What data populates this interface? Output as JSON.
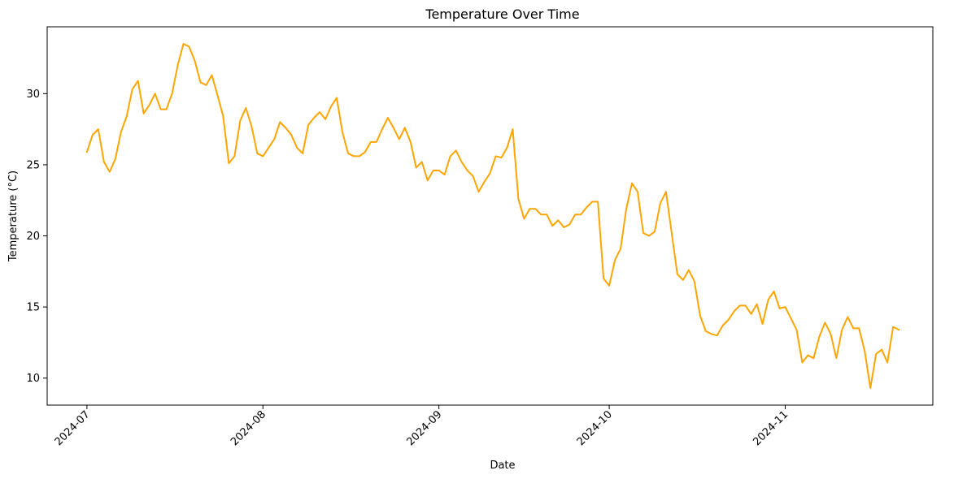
{
  "chart_data": {
    "type": "line",
    "title": "Temperature Over Time",
    "xlabel": "Date",
    "ylabel": "Temperature (°C)",
    "x_start": "2024-07-01",
    "x_end": "2024-11-20",
    "xlim": [
      "2024-06-24",
      "2024-11-27"
    ],
    "ylim": [
      8.1,
      34.7
    ],
    "x_ticks": [
      "2024-07-01",
      "2024-08-01",
      "2024-09-01",
      "2024-10-01",
      "2024-11-01"
    ],
    "x_tick_labels": [
      "2024-07",
      "2024-08",
      "2024-09",
      "2024-10",
      "2024-11"
    ],
    "y_ticks": [
      10,
      15,
      20,
      25,
      30
    ],
    "y_tick_labels": [
      "10",
      "15",
      "20",
      "25",
      "30"
    ],
    "grid": false,
    "legend": "none",
    "series": [
      {
        "color": "#ffa500",
        "values": [
          25.9,
          27.1,
          27.5,
          25.2,
          24.5,
          25.4,
          27.3,
          28.4,
          30.3,
          30.9,
          28.6,
          29.2,
          30.0,
          28.9,
          28.9,
          30.0,
          32.0,
          33.5,
          33.3,
          32.3,
          30.8,
          30.6,
          31.3,
          29.9,
          28.4,
          25.1,
          25.6,
          28.1,
          29.0,
          27.7,
          25.8,
          25.6,
          26.2,
          26.8,
          28.0,
          27.6,
          27.1,
          26.2,
          25.8,
          27.8,
          28.3,
          28.7,
          28.2,
          29.1,
          29.7,
          27.3,
          25.8,
          25.6,
          25.6,
          25.9,
          26.6,
          26.6,
          27.5,
          28.3,
          27.6,
          26.8,
          27.6,
          26.6,
          24.8,
          25.2,
          23.9,
          24.6,
          24.6,
          24.3,
          25.6,
          26.0,
          25.2,
          24.6,
          24.2,
          23.1,
          23.8,
          24.4,
          25.6,
          25.5,
          26.2,
          27.5,
          22.6,
          21.2,
          21.9,
          21.9,
          21.5,
          21.5,
          20.7,
          21.1,
          20.6,
          20.8,
          21.5,
          21.5,
          22.0,
          22.4,
          22.4,
          17.0,
          16.5,
          18.3,
          19.1,
          21.9,
          23.7,
          23.1,
          20.2,
          20.0,
          20.3,
          22.3,
          23.1,
          20.2,
          17.3,
          16.9,
          17.6,
          16.8,
          14.4,
          13.3,
          13.1,
          13.0,
          13.7,
          14.1,
          14.7,
          15.1,
          15.1,
          14.5,
          15.2,
          13.8,
          15.5,
          16.1,
          14.9,
          15.0,
          14.2,
          13.4,
          11.1,
          11.6,
          11.4,
          12.9,
          13.9,
          13.1,
          11.4,
          13.4,
          14.3,
          13.5,
          13.5,
          11.9,
          9.3,
          11.7,
          12.0,
          11.1,
          13.6,
          13.4
        ]
      }
    ]
  }
}
